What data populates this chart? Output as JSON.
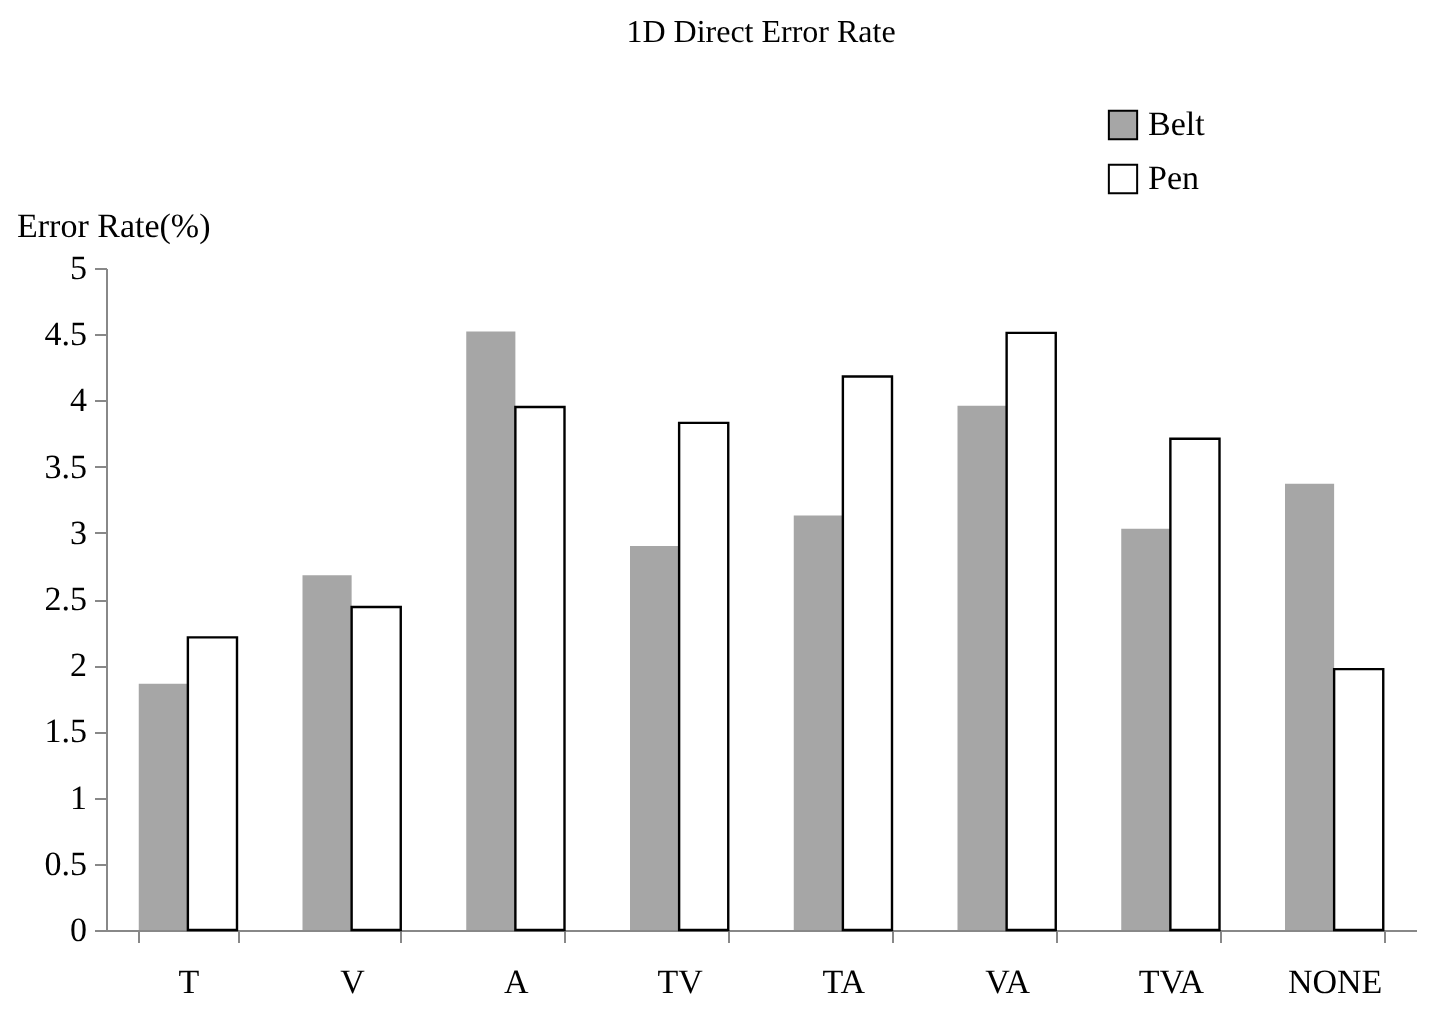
{
  "chart_data": {
    "type": "bar",
    "title": "1D Direct  Error Rate",
    "ylabel": "Error Rate(%)",
    "categories": [
      "T",
      "V",
      "A",
      "TV",
      "TA",
      "VA",
      "TVA",
      "NONE"
    ],
    "series": [
      {
        "name": "Belt",
        "color": "#a6a6a6",
        "values": [
          1.86,
          2.68,
          4.52,
          2.9,
          3.13,
          3.96,
          3.03,
          3.37
        ]
      },
      {
        "name": "Pen",
        "color": "#ffffff",
        "values": [
          2.21,
          2.44,
          3.95,
          3.83,
          4.18,
          4.51,
          3.71,
          1.97
        ]
      }
    ],
    "ylim": [
      0,
      5
    ],
    "yticks": [
      0,
      0.5,
      1,
      1.5,
      2,
      2.5,
      3,
      3.5,
      4,
      4.5,
      5
    ],
    "grid": false,
    "legend": "top right"
  }
}
